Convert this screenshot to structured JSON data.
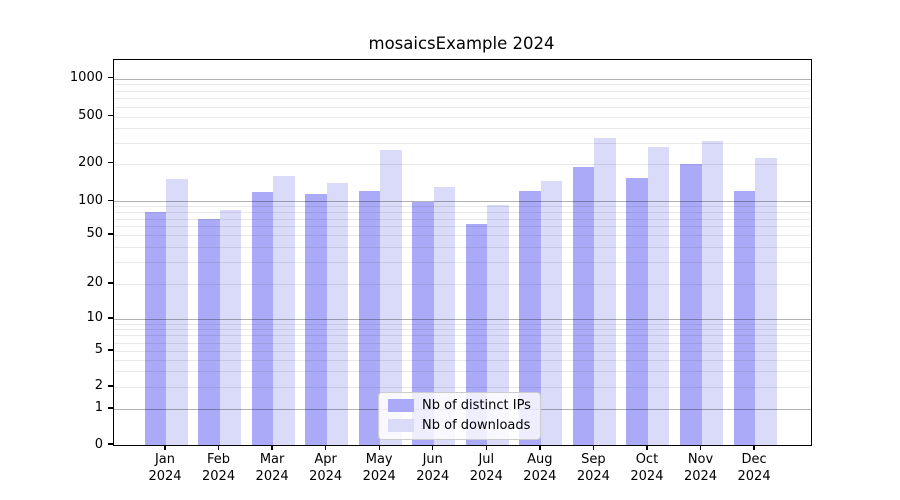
{
  "chart_data": {
    "type": "bar",
    "title": "mosaicsExample 2024",
    "categories": [
      "Jan 2024",
      "Feb 2024",
      "Mar 2024",
      "Apr 2024",
      "May 2024",
      "Jun 2024",
      "Jul 2024",
      "Aug 2024",
      "Sep 2024",
      "Oct 2024",
      "Nov 2024",
      "Dec 2024"
    ],
    "x_tick_line1": [
      "Jan",
      "Feb",
      "Mar",
      "Apr",
      "May",
      "Jun",
      "Jul",
      "Aug",
      "Sep",
      "Oct",
      "Nov",
      "Dec"
    ],
    "x_tick_line2": [
      "2024",
      "2024",
      "2024",
      "2024",
      "2024",
      "2024",
      "2024",
      "2024",
      "2024",
      "2024",
      "2024",
      "2024"
    ],
    "series": [
      {
        "name": "Nb of distinct IPs",
        "color": "#aaaaf8",
        "values": [
          80,
          70,
          118,
          115,
          122,
          98,
          63,
          122,
          190,
          155,
          198,
          120
        ]
      },
      {
        "name": "Nb of downloads",
        "color": "#dadaf9",
        "values": [
          150,
          83,
          160,
          140,
          263,
          131,
          93,
          145,
          330,
          280,
          313,
          222
        ]
      }
    ],
    "y_ticks": [
      0,
      1,
      2,
      5,
      10,
      20,
      50,
      100,
      200,
      500,
      1000
    ],
    "y_minor_gridlines": [
      2,
      3,
      4,
      5,
      6,
      7,
      8,
      9,
      20,
      30,
      40,
      50,
      60,
      70,
      80,
      90,
      200,
      300,
      400,
      500,
      600,
      700,
      800,
      900
    ],
    "y_major_gridlines": [
      1,
      10,
      100,
      1000
    ],
    "y_scale": "log-like with 0 baseline",
    "ylim": [
      0,
      1300
    ],
    "xlabel": "",
    "ylabel": "",
    "grid": "on",
    "legend_position": "lower center",
    "colors": {
      "distinct_ips": "#aaaaf8",
      "downloads": "#dadaf9",
      "grid_major": "#b3b3b3",
      "grid_minor": "#e9e9e9",
      "axis": "#000000"
    }
  }
}
